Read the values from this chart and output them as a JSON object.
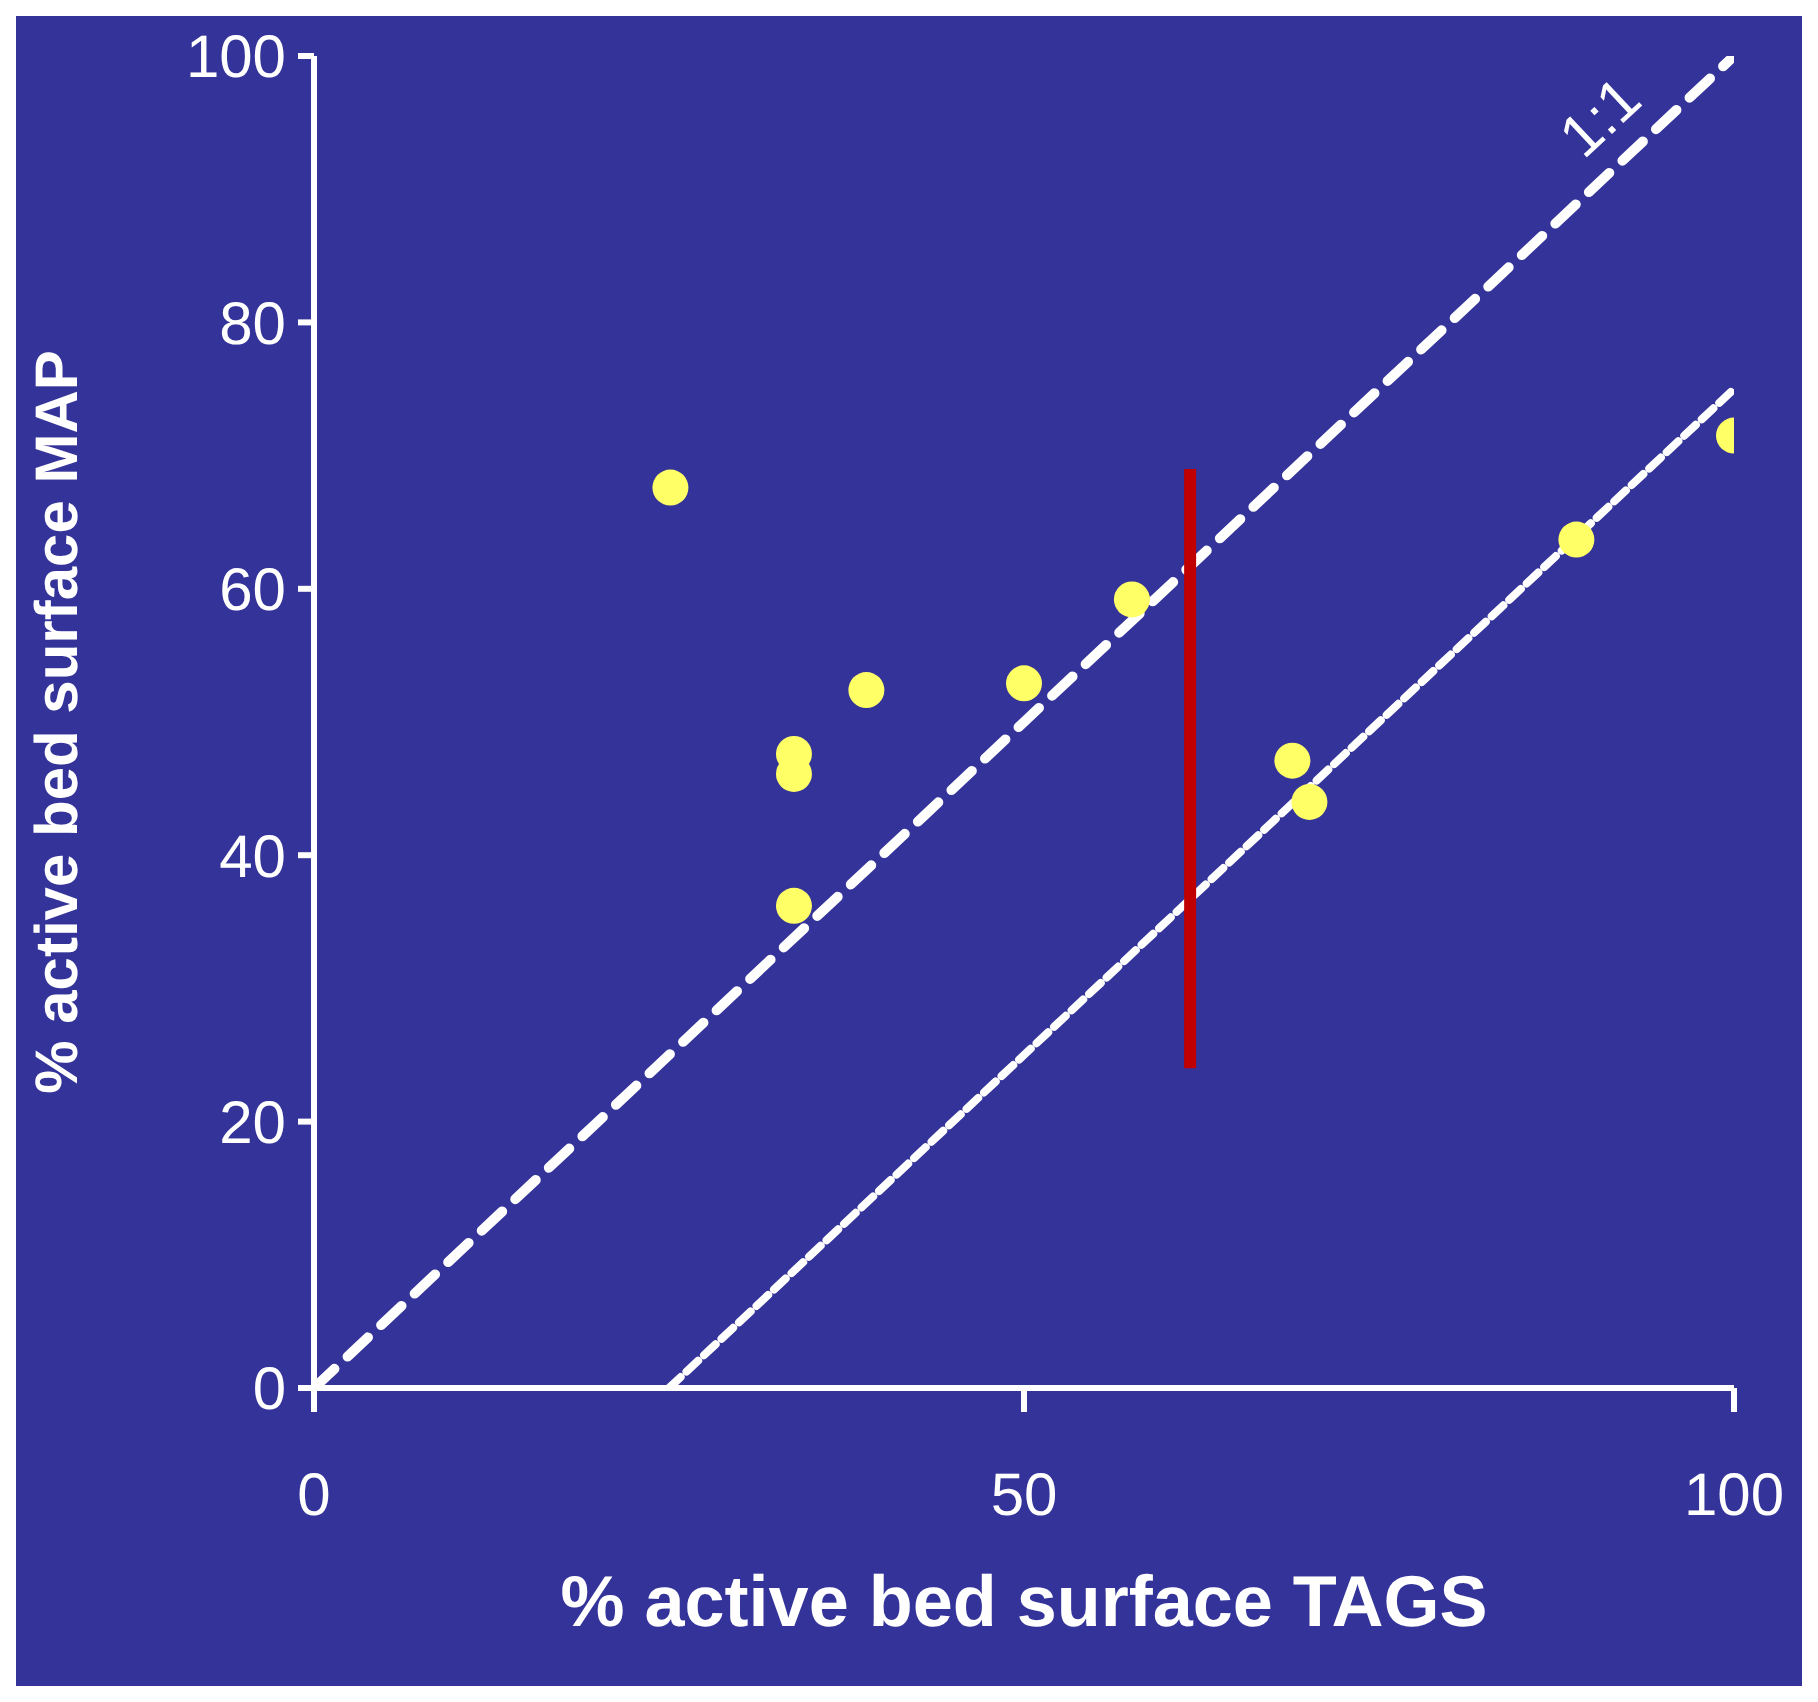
{
  "chart_data": {
    "type": "scatter",
    "xlabel": "% active bed surface TAGS",
    "ylabel": "% active bed surface MAP",
    "xlim": [
      0,
      100
    ],
    "ylim": [
      0,
      100
    ],
    "xticks": [
      0,
      50,
      100
    ],
    "yticks": [
      0,
      20,
      40,
      60,
      80,
      100
    ],
    "grid": false,
    "legend": false,
    "marker": "circle",
    "series": [
      {
        "type": "scatter",
        "color": "#ffff66",
        "x": [
          25.1,
          33.8,
          33.8,
          33.8,
          38.9,
          50.0,
          57.6,
          68.9,
          70.1,
          88.9,
          100
        ],
        "values": [
          67.6,
          47.6,
          46.1,
          36.2,
          52.4,
          52.9,
          59.2,
          47.1,
          44.0,
          63.7,
          71.5
        ]
      },
      {
        "type": "line",
        "name": "1:1",
        "color": "#ffffff",
        "line_style": "dashed",
        "marker": "none",
        "x": [
          0,
          100
        ],
        "values": [
          0,
          100
        ]
      },
      {
        "type": "line",
        "color": "#ffffff",
        "line_style": "dashed",
        "marker": "none",
        "x": [
          25,
          100
        ],
        "values": [
          0,
          75
        ]
      },
      {
        "type": "line",
        "color": "#c00000",
        "line_style": "solid",
        "marker": "none",
        "x": [
          61.7,
          61.7
        ],
        "values": [
          24,
          69
        ]
      }
    ]
  }
}
